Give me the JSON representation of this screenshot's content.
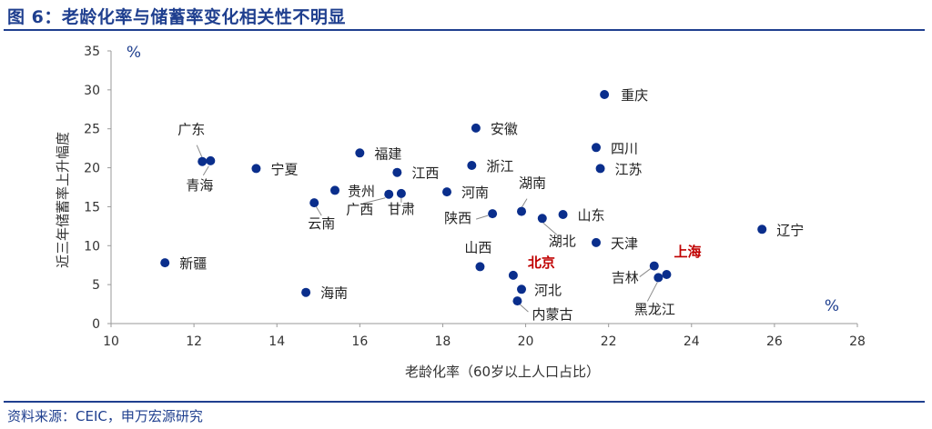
{
  "figure": {
    "title": "图 6：老龄化率与储蓄率变化相关性不明显",
    "source": "资料来源：CEIC，申万宏源研究"
  },
  "chart_data": {
    "type": "scatter",
    "xlabel": "老龄化率（60岁以上人口占比）",
    "ylabel": "近三年储蓄率上升幅度",
    "x_unit": "%",
    "y_unit": "%",
    "xlim": [
      10,
      28
    ],
    "ylim": [
      0,
      35
    ],
    "xticks": [
      10,
      12,
      14,
      16,
      18,
      20,
      22,
      24,
      26,
      28
    ],
    "yticks": [
      0,
      5,
      10,
      15,
      20,
      25,
      30,
      35
    ],
    "grid": false,
    "marker_color": "#0a2e8c",
    "highlight_color": "#c00000",
    "points": [
      {
        "label": "重庆",
        "x": 21.9,
        "y": 29.4
      },
      {
        "label": "安徽",
        "x": 18.8,
        "y": 25.1
      },
      {
        "label": "四川",
        "x": 21.7,
        "y": 22.6
      },
      {
        "label": "福建",
        "x": 16.0,
        "y": 21.9
      },
      {
        "label": "广东",
        "x": 12.2,
        "y": 20.8
      },
      {
        "label": "青海",
        "x": 12.4,
        "y": 20.9
      },
      {
        "label": "宁夏",
        "x": 13.5,
        "y": 19.9
      },
      {
        "label": "浙江",
        "x": 18.7,
        "y": 20.3
      },
      {
        "label": "江苏",
        "x": 21.8,
        "y": 19.9
      },
      {
        "label": "江西",
        "x": 16.9,
        "y": 19.4
      },
      {
        "label": "贵州",
        "x": 15.4,
        "y": 17.1
      },
      {
        "label": "广西",
        "x": 16.7,
        "y": 16.6
      },
      {
        "label": "甘肃",
        "x": 17.0,
        "y": 16.7
      },
      {
        "label": "河南",
        "x": 18.1,
        "y": 16.9
      },
      {
        "label": "云南",
        "x": 14.9,
        "y": 15.5
      },
      {
        "label": "湖南",
        "x": 19.9,
        "y": 14.4
      },
      {
        "label": "陕西",
        "x": 19.2,
        "y": 14.1
      },
      {
        "label": "湖北",
        "x": 20.4,
        "y": 13.5
      },
      {
        "label": "山东",
        "x": 20.9,
        "y": 14.0
      },
      {
        "label": "辽宁",
        "x": 25.7,
        "y": 12.1
      },
      {
        "label": "天津",
        "x": 21.7,
        "y": 10.4
      },
      {
        "label": "新疆",
        "x": 11.3,
        "y": 7.8
      },
      {
        "label": "山西",
        "x": 18.9,
        "y": 7.3
      },
      {
        "label": "吉林",
        "x": 23.1,
        "y": 7.4
      },
      {
        "label": "北京",
        "x": 19.7,
        "y": 6.2,
        "highlight": true
      },
      {
        "label": "上海",
        "x": 23.4,
        "y": 6.3,
        "highlight": true
      },
      {
        "label": "黑龙江",
        "x": 23.2,
        "y": 5.9
      },
      {
        "label": "河北",
        "x": 19.9,
        "y": 4.4
      },
      {
        "label": "海南",
        "x": 14.7,
        "y": 4.0
      },
      {
        "label": "内蒙古",
        "x": 19.8,
        "y": 2.9
      }
    ]
  }
}
